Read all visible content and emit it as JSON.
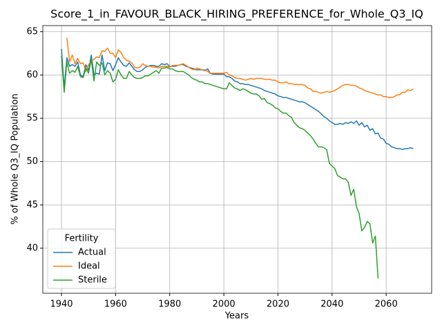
{
  "chart_data": {
    "type": "line",
    "title": "Score_1_in_FAVOUR_BLACK_HIRING_PREFERENCE_for_Whole_Q3_IQ",
    "xlabel": "Years",
    "ylabel": "% of Whole Q3_IQ Population",
    "xlim": [
      1933.1,
      2076.8
    ],
    "ylim": [
      34.8,
      65.7
    ],
    "xticks": [
      1940,
      1960,
      1980,
      2000,
      2020,
      2040,
      2060
    ],
    "yticks": [
      40,
      45,
      50,
      55,
      60,
      65
    ],
    "grid": true,
    "legend": "lower left",
    "legend_title": "Fertility",
    "x": [
      1940,
      1941,
      1942,
      1943,
      1944,
      1945,
      1946,
      1947,
      1948,
      1949,
      1950,
      1951,
      1952,
      1953,
      1954,
      1955,
      1956,
      1957,
      1958,
      1959,
      1960,
      1961,
      1962,
      1963,
      1964,
      1965,
      1966,
      1967,
      1968,
      1969,
      1970,
      1971,
      1972,
      1973,
      1974,
      1975,
      1976,
      1977,
      1978,
      1979,
      1980,
      1981,
      1982,
      1983,
      1984,
      1985,
      1986,
      1987,
      1988,
      1989,
      1990,
      1991,
      1992,
      1993,
      1994,
      1995,
      1996,
      1997,
      1998,
      1999,
      2000,
      2001,
      2002,
      2003,
      2004,
      2005,
      2006,
      2007,
      2008,
      2009,
      2010,
      2011,
      2012,
      2013,
      2014,
      2015,
      2016,
      2017,
      2018,
      2019,
      2020,
      2021,
      2022,
      2023,
      2024,
      2025,
      2026,
      2027,
      2028,
      2029,
      2030,
      2031,
      2032,
      2033,
      2034,
      2035,
      2036,
      2037,
      2038,
      2039,
      2040,
      2041,
      2042,
      2043,
      2044,
      2045,
      2046,
      2047,
      2048,
      2049,
      2050,
      2051,
      2052,
      2053,
      2054,
      2055,
      2056,
      2057,
      2058,
      2059,
      2060,
      2061,
      2062,
      2063,
      2064,
      2065,
      2066,
      2067,
      2068,
      2069,
      2070
    ],
    "series": [
      {
        "name": "Actual",
        "color": "#1f77b4",
        "values": [
          63.0,
          58.5,
          62.0,
          61.0,
          61.2,
          61.0,
          61.5,
          60.0,
          59.8,
          61.2,
          60.5,
          62.3,
          60.0,
          60.2,
          60.1,
          62.3,
          60.5,
          61.4,
          61.3,
          60.5,
          61.2,
          62.0,
          61.5,
          61.1,
          61.0,
          61.4,
          61.0,
          60.6,
          60.4,
          60.4,
          60.6,
          60.9,
          61.0,
          61.1,
          61.1,
          61.0,
          61.0,
          61.3,
          61.2,
          61.3,
          61.0,
          61.0,
          61.0,
          61.1,
          61.2,
          61.2,
          61.0,
          60.9,
          60.8,
          60.7,
          60.6,
          60.6,
          60.6,
          60.5,
          60.7,
          60.2,
          60.1,
          60.1,
          60.1,
          60.1,
          60.1,
          59.8,
          59.8,
          59.6,
          59.3,
          59.2,
          59.0,
          59.0,
          58.9,
          58.9,
          58.8,
          58.7,
          58.6,
          58.5,
          58.4,
          58.2,
          58.1,
          58.0,
          57.9,
          57.8,
          57.6,
          57.5,
          57.4,
          57.4,
          57.3,
          57.2,
          57.1,
          57.0,
          56.9,
          56.9,
          56.8,
          56.6,
          56.4,
          56.2,
          56.0,
          55.8,
          55.5,
          55.2,
          55.0,
          54.7,
          54.5,
          54.3,
          54.3,
          54.4,
          54.3,
          54.5,
          54.4,
          54.6,
          54.4,
          54.7,
          54.2,
          54.5,
          54.0,
          54.2,
          53.6,
          53.8,
          53.2,
          53.3,
          52.7,
          52.6,
          52.1,
          52.0,
          51.7,
          51.6,
          51.5,
          51.5,
          51.4,
          51.5,
          51.5,
          51.6,
          51.5
        ]
      },
      {
        "name": "Ideal",
        "color": "#ff7f0e",
        "values": [
          null,
          null,
          64.3,
          61.5,
          62.3,
          61.3,
          61.9,
          61.3,
          61.4,
          60.4,
          61.2,
          61.6,
          61.8,
          62.1,
          62.0,
          62.8,
          62.7,
          63.1,
          62.5,
          62.5,
          62.0,
          62.9,
          62.6,
          62.0,
          61.7,
          61.6,
          61.4,
          60.9,
          60.8,
          60.9,
          61.3,
          61.1,
          61.0,
          61.0,
          60.9,
          60.9,
          60.8,
          61.0,
          61.0,
          61.0,
          60.9,
          61.1,
          61.1,
          61.1,
          61.2,
          61.3,
          61.1,
          60.9,
          60.7,
          60.6,
          60.8,
          60.7,
          60.6,
          60.6,
          60.4,
          60.2,
          60.2,
          60.2,
          60.2,
          60.2,
          60.2,
          60.3,
          60.0,
          59.9,
          59.7,
          59.6,
          59.6,
          59.5,
          59.4,
          59.5,
          59.6,
          59.5,
          59.6,
          59.6,
          59.6,
          59.5,
          59.5,
          59.5,
          59.4,
          59.4,
          59.2,
          59.1,
          59.1,
          59.2,
          59.0,
          59.0,
          58.9,
          58.9,
          58.9,
          58.9,
          58.8,
          58.5,
          58.4,
          58.1,
          58.1,
          58.0,
          57.9,
          58.0,
          58.1,
          58.0,
          58.1,
          58.2,
          58.4,
          58.6,
          58.8,
          58.9,
          58.9,
          58.8,
          58.8,
          58.7,
          58.5,
          58.4,
          58.2,
          58.1,
          58.0,
          57.9,
          57.8,
          57.7,
          57.7,
          57.5,
          57.5,
          57.4,
          57.4,
          57.5,
          57.7,
          57.7,
          58.0,
          58.0,
          58.3,
          58.2,
          58.4
        ]
      },
      {
        "name": "Sterile",
        "color": "#2ca02c",
        "values": [
          62.2,
          58.0,
          61.5,
          60.2,
          60.5,
          60.3,
          61.0,
          59.8,
          59.7,
          60.8,
          60.2,
          61.8,
          59.3,
          61.5,
          61.1,
          61.4,
          60.0,
          60.5,
          60.2,
          59.2,
          59.5,
          60.6,
          60.0,
          59.6,
          59.6,
          60.4,
          60.0,
          59.7,
          59.6,
          59.6,
          59.7,
          59.9,
          59.9,
          60.1,
          60.3,
          60.5,
          60.2,
          60.8,
          60.8,
          60.9,
          60.7,
          60.7,
          60.5,
          60.4,
          60.4,
          60.4,
          60.2,
          60.0,
          59.7,
          59.5,
          59.4,
          59.2,
          59.2,
          59.0,
          59.0,
          58.9,
          58.8,
          58.7,
          58.6,
          58.5,
          58.4,
          58.4,
          59.1,
          58.8,
          58.5,
          58.4,
          58.2,
          58.4,
          58.3,
          58.1,
          57.9,
          57.8,
          57.8,
          57.6,
          57.2,
          57.3,
          56.8,
          56.7,
          56.5,
          56.2,
          56.1,
          55.8,
          55.6,
          55.6,
          55.3,
          55.1,
          54.5,
          54.2,
          53.9,
          53.8,
          53.6,
          53.3,
          53.0,
          52.6,
          52.1,
          51.7,
          51.7,
          51.6,
          51.4,
          49.8,
          49.5,
          49.2,
          48.4,
          48.2,
          48.0,
          48.0,
          47.6,
          46.1,
          46.8,
          44.8,
          44.0,
          42.0,
          42.4,
          43.1,
          42.8,
          40.6,
          41.4,
          36.5,
          null,
          null,
          null,
          null,
          null,
          null,
          null,
          null,
          null,
          null,
          null,
          null,
          null
        ]
      }
    ]
  }
}
